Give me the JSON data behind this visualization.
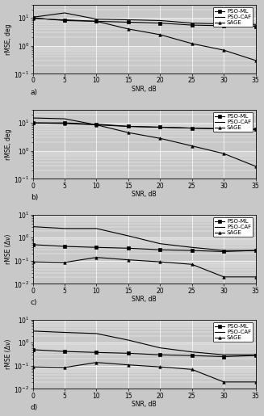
{
  "snr": [
    0,
    5,
    10,
    15,
    20,
    25,
    30,
    35
  ],
  "subplot_labels": [
    "a)",
    "b)",
    "c)",
    "d)"
  ],
  "ylabels": [
    "rMSE, deg",
    "rMSE, deg",
    "rMSE (Δν)",
    "rMSE (Δν)"
  ],
  "legend_entries": [
    "PSO-ML",
    "PSO-CAF",
    "SAGE"
  ],
  "plots": [
    {
      "PSO-ML": [
        10.0,
        8.0,
        7.5,
        7.0,
        6.5,
        5.5,
        5.2,
        5.0
      ],
      "PSO-CAF": [
        10.5,
        15.0,
        9.0,
        8.5,
        8.0,
        6.5,
        6.0,
        5.8
      ],
      "SAGE": [
        9.5,
        8.5,
        7.5,
        4.0,
        2.5,
        1.2,
        0.7,
        0.3
      ],
      "ylim": [
        0.1,
        30
      ],
      "yticks": [
        0.1,
        1.0,
        10.0
      ]
    },
    {
      "PSO-ML": [
        10.0,
        10.0,
        9.0,
        7.5,
        7.0,
        6.5,
        6.0,
        5.8
      ],
      "PSO-CAF": [
        15.0,
        14.0,
        8.5,
        7.5,
        7.0,
        6.5,
        6.2,
        6.0
      ],
      "SAGE": [
        10.0,
        9.5,
        8.5,
        4.5,
        2.8,
        1.5,
        0.8,
        0.28
      ],
      "ylim": [
        0.1,
        30
      ],
      "yticks": [
        0.1,
        1.0,
        10.0
      ]
    },
    {
      "PSO-ML": [
        0.5,
        0.42,
        0.38,
        0.35,
        0.3,
        0.28,
        0.25,
        0.28
      ],
      "PSO-CAF": [
        3.0,
        2.5,
        2.5,
        1.2,
        0.55,
        0.38,
        0.28,
        0.28
      ],
      "SAGE": [
        0.09,
        0.085,
        0.14,
        0.11,
        0.09,
        0.07,
        0.02,
        0.02
      ],
      "ylim": [
        0.01,
        10
      ],
      "yticks": [
        0.01,
        0.1,
        1.0,
        10.0
      ]
    },
    {
      "PSO-ML": [
        0.5,
        0.42,
        0.38,
        0.35,
        0.3,
        0.28,
        0.25,
        0.28
      ],
      "PSO-CAF": [
        3.2,
        2.8,
        2.5,
        1.3,
        0.6,
        0.4,
        0.3,
        0.3
      ],
      "SAGE": [
        0.09,
        0.085,
        0.14,
        0.11,
        0.09,
        0.07,
        0.02,
        0.02
      ],
      "ylim": [
        0.01,
        10
      ],
      "yticks": [
        0.01,
        0.1,
        1.0,
        10.0
      ]
    }
  ],
  "line_color": "#000000",
  "bg_color": "#c8c8c8",
  "grid_color": "#ffffff",
  "fig_bg": "#c8c8c8",
  "figsize": [
    3.27,
    5.15
  ],
  "dpi": 100
}
